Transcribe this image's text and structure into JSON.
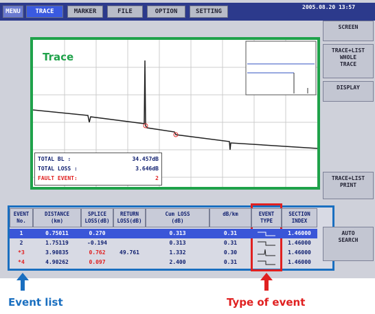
{
  "menu": {
    "tabs": [
      "MENU",
      "TRACE",
      "MARKER",
      "FILE",
      "OPTION",
      "SETTING"
    ],
    "datetime": "2005.08.20 13:57"
  },
  "side_buttons": [
    [
      "SCREEN"
    ],
    [
      "TRACE+LIST",
      "WHOLE",
      "TRACE"
    ],
    [
      "DISPLAY"
    ],
    [
      "TRACE+LIST",
      "PRINT"
    ],
    [
      "AUTO",
      "SEARCH"
    ]
  ],
  "summary": [
    [
      "TOTAL BL :",
      "34.457dB"
    ],
    [
      "TOTAL LOSS :",
      "3.646dB"
    ],
    [
      "FAULT EVENT:",
      "2"
    ]
  ],
  "event_table": {
    "headers": [
      [
        "EVENT",
        "No."
      ],
      [
        "DISTANCE",
        "(km)"
      ],
      [
        "SPLICE",
        "LOSS(dB)"
      ],
      [
        "RETURN",
        "LOSS(dB)"
      ],
      [
        "Cum LOSS",
        "(dB)"
      ],
      [
        "dB/km",
        ""
      ],
      [
        "EVENT",
        "TYPE"
      ],
      [
        "SECTION",
        "INDEX"
      ]
    ],
    "rows": [
      [
        "1",
        "0.75011",
        "0.270",
        "",
        "0.313",
        "0.31",
        "",
        "1.46000"
      ],
      [
        "2",
        "1.75119",
        "-0.194",
        "",
        "0.313",
        "0.31",
        "",
        "1.46000"
      ],
      [
        "*3",
        "3.90835",
        "0.762",
        "49.761",
        "1.332",
        "0.30",
        "",
        "1.46000"
      ],
      [
        "*4",
        "4.90262",
        "0.097",
        "",
        "2.400",
        "0.31",
        "",
        "1.46000"
      ]
    ]
  },
  "annotations": {
    "trace": "Trace",
    "event_list": "Event list",
    "event_type": "Type of event"
  }
}
